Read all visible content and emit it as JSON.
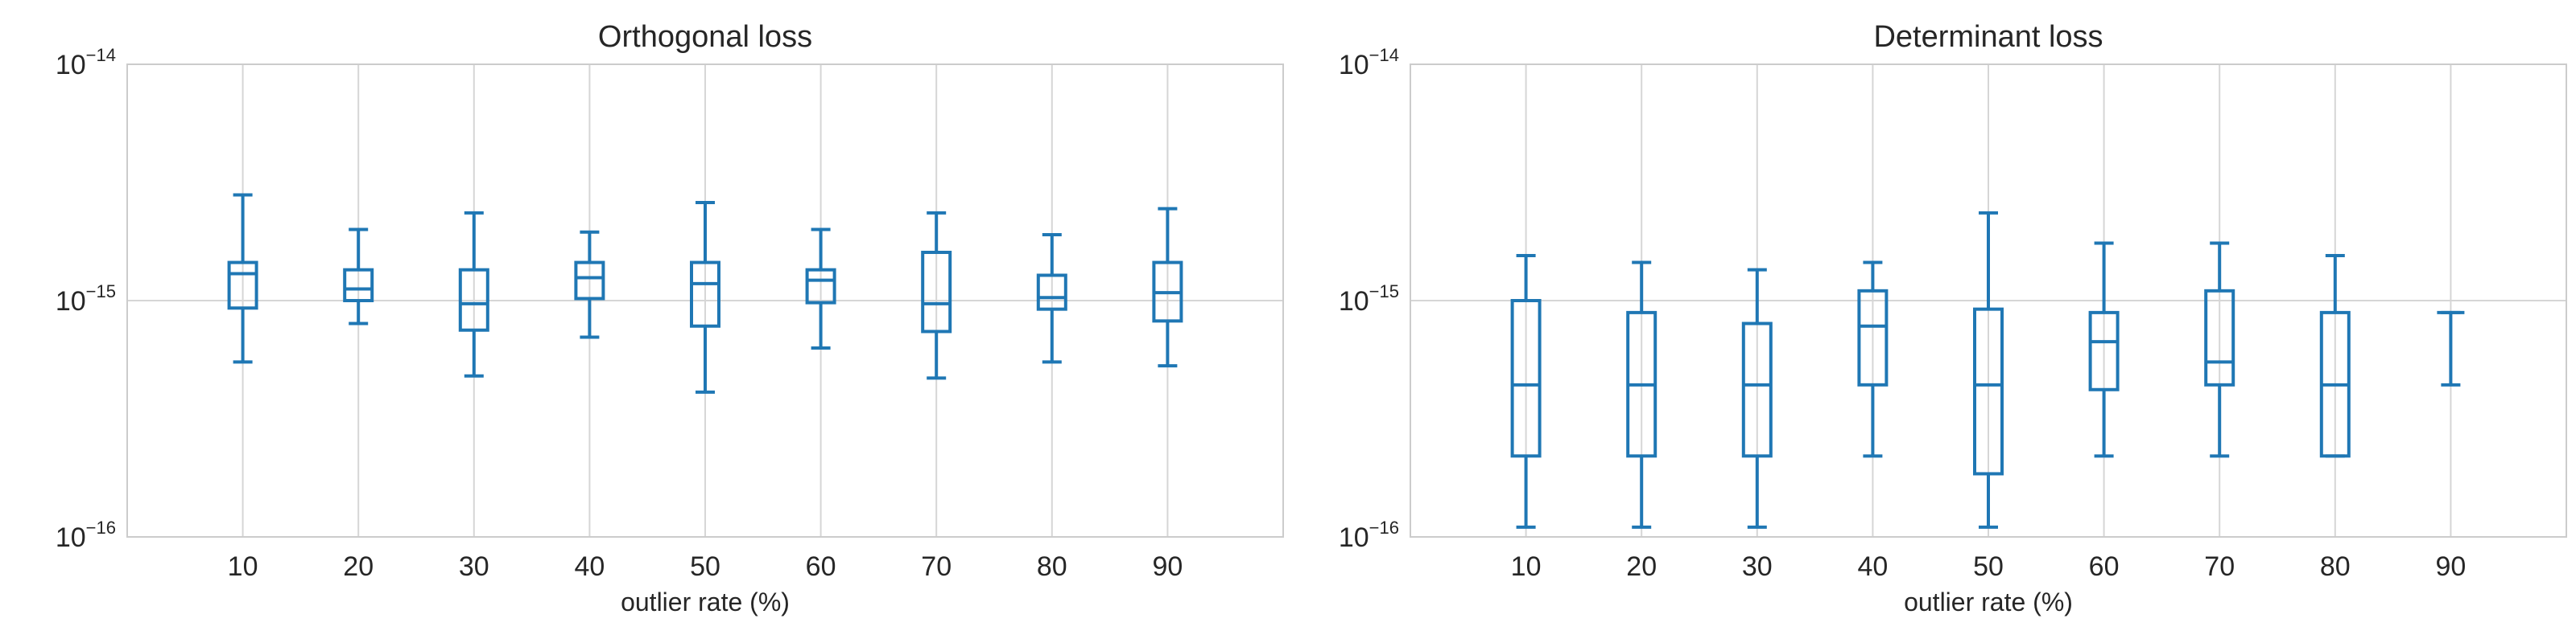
{
  "chart_data": [
    {
      "type": "box",
      "title": "Orthogonal loss",
      "xlabel": "outlier rate (%)",
      "ylabel": "",
      "yscale": "log",
      "ylim": [
        1e-16,
        1e-14
      ],
      "grid": true,
      "color": "#1f77b4",
      "yticks": [
        {
          "base": "10",
          "exp": "−16",
          "value": 1e-16
        },
        {
          "base": "10",
          "exp": "−15",
          "value": 1e-15
        },
        {
          "base": "10",
          "exp": "−14",
          "value": 1e-14
        }
      ],
      "categories": [
        "10",
        "20",
        "30",
        "40",
        "50",
        "60",
        "70",
        "80",
        "90"
      ],
      "boxes": [
        {
          "whislo": 5.5e-16,
          "q1": 9.3e-16,
          "med": 1.3e-15,
          "q3": 1.45e-15,
          "whishi": 2.8e-15
        },
        {
          "whislo": 8e-16,
          "q1": 1e-15,
          "med": 1.12e-15,
          "q3": 1.35e-15,
          "whishi": 2e-15
        },
        {
          "whislo": 4.8e-16,
          "q1": 7.5e-16,
          "med": 9.7e-16,
          "q3": 1.35e-15,
          "whishi": 2.35e-15
        },
        {
          "whislo": 7e-16,
          "q1": 1.02e-15,
          "med": 1.25e-15,
          "q3": 1.45e-15,
          "whishi": 1.95e-15
        },
        {
          "whislo": 4.1e-16,
          "q1": 7.8e-16,
          "med": 1.18e-15,
          "q3": 1.45e-15,
          "whishi": 2.6e-15
        },
        {
          "whislo": 6.3e-16,
          "q1": 9.8e-16,
          "med": 1.22e-15,
          "q3": 1.35e-15,
          "whishi": 2e-15
        },
        {
          "whislo": 4.7e-16,
          "q1": 7.4e-16,
          "med": 9.7e-16,
          "q3": 1.6e-15,
          "whishi": 2.35e-15
        },
        {
          "whislo": 5.5e-16,
          "q1": 9.2e-16,
          "med": 1.03e-15,
          "q3": 1.28e-15,
          "whishi": 1.9e-15
        },
        {
          "whislo": 5.3e-16,
          "q1": 8.2e-16,
          "med": 1.08e-15,
          "q3": 1.45e-15,
          "whishi": 2.45e-15
        }
      ]
    },
    {
      "type": "box",
      "title": "Determinant loss",
      "xlabel": "outlier rate (%)",
      "ylabel": "",
      "yscale": "log",
      "ylim": [
        1e-16,
        1e-14
      ],
      "grid": true,
      "color": "#1f77b4",
      "yticks": [
        {
          "base": "10",
          "exp": "−16",
          "value": 1e-16
        },
        {
          "base": "10",
          "exp": "−15",
          "value": 1e-15
        },
        {
          "base": "10",
          "exp": "−14",
          "value": 1e-14
        }
      ],
      "categories": [
        "10",
        "20",
        "30",
        "40",
        "50",
        "60",
        "70",
        "80",
        "90"
      ],
      "boxes": [
        {
          "whislo": 1.1e-16,
          "q1": 2.2e-16,
          "med": 4.4e-16,
          "q3": 1e-15,
          "whishi": 1.55e-15
        },
        {
          "whislo": 1.1e-16,
          "q1": 2.2e-16,
          "med": 4.4e-16,
          "q3": 8.9e-16,
          "whishi": 1.45e-15
        },
        {
          "whislo": 1.1e-16,
          "q1": 2.2e-16,
          "med": 4.4e-16,
          "q3": 8e-16,
          "whishi": 1.35e-15
        },
        {
          "whislo": 2.2e-16,
          "q1": 4.4e-16,
          "med": 7.8e-16,
          "q3": 1.1e-15,
          "whishi": 1.45e-15
        },
        {
          "whislo": 1.1e-16,
          "q1": 1.85e-16,
          "med": 4.4e-16,
          "q3": 9.2e-16,
          "whishi": 2.35e-15
        },
        {
          "whislo": 2.2e-16,
          "q1": 4.2e-16,
          "med": 6.7e-16,
          "q3": 8.9e-16,
          "whishi": 1.75e-15
        },
        {
          "whislo": 2.2e-16,
          "q1": 4.4e-16,
          "med": 5.5e-16,
          "q3": 1.1e-15,
          "whishi": 1.75e-15
        },
        {
          "whislo": 2.2e-16,
          "q1": 2.2e-16,
          "med": 4.4e-16,
          "q3": 8.9e-16,
          "whishi": 1.55e-15
        },
        {
          "whislo": 4.4e-16,
          "q1": 8.9e-16,
          "med": 8.9e-16,
          "q3": 8.9e-16,
          "whishi": 8.9e-16
        }
      ]
    }
  ]
}
